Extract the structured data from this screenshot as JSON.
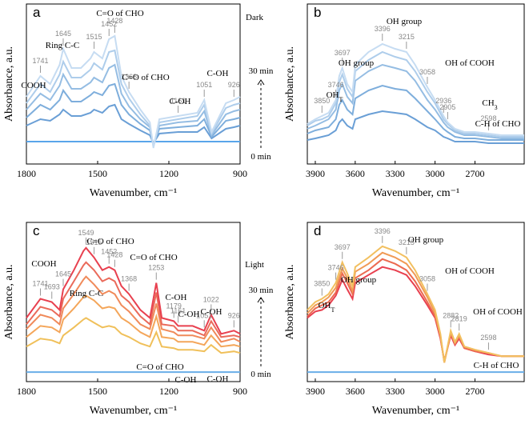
{
  "chart_data": [
    {
      "type": "line",
      "label": "a",
      "xlabel": "Wavenumber, cm⁻¹",
      "ylabel": "Absorbance, a.u.",
      "xlim": [
        1800,
        900
      ],
      "xticks": [
        1800,
        1500,
        1200,
        900
      ],
      "ylim": [
        0,
        1
      ],
      "x": [
        1800,
        1741,
        1700,
        1660,
        1645,
        1610,
        1570,
        1530,
        1515,
        1480,
        1452,
        1428,
        1400,
        1368,
        1320,
        1280,
        1265,
        1240,
        1161,
        1080,
        1051,
        1020,
        960,
        926,
        900
      ],
      "series": [
        {
          "color": "#5aa5ea",
          "values": [
            0.14,
            0.14,
            0.14,
            0.14,
            0.14,
            0.14,
            0.14,
            0.14,
            0.14,
            0.14,
            0.14,
            0.14,
            0.14,
            0.14,
            0.14,
            0.14,
            0.14,
            0.14,
            0.14,
            0.14,
            0.14,
            0.14,
            0.14,
            0.14,
            0.14
          ]
        },
        {
          "color": "#6a9fd6",
          "values": [
            0.24,
            0.28,
            0.27,
            0.31,
            0.34,
            0.3,
            0.3,
            0.32,
            0.34,
            0.32,
            0.36,
            0.37,
            0.28,
            0.25,
            0.21,
            0.18,
            0.13,
            0.19,
            0.2,
            0.2,
            0.23,
            0.16,
            0.22,
            0.23,
            0.24
          ]
        },
        {
          "color": "#7eaedc",
          "values": [
            0.29,
            0.37,
            0.34,
            0.4,
            0.46,
            0.39,
            0.39,
            0.43,
            0.45,
            0.43,
            0.49,
            0.5,
            0.37,
            0.31,
            0.25,
            0.21,
            0.12,
            0.22,
            0.23,
            0.24,
            0.28,
            0.17,
            0.27,
            0.28,
            0.29
          ]
        },
        {
          "color": "#95bde3",
          "values": [
            0.34,
            0.44,
            0.4,
            0.49,
            0.56,
            0.47,
            0.47,
            0.51,
            0.54,
            0.51,
            0.6,
            0.62,
            0.44,
            0.36,
            0.28,
            0.23,
            0.11,
            0.24,
            0.26,
            0.27,
            0.33,
            0.18,
            0.31,
            0.33,
            0.34
          ]
        },
        {
          "color": "#aecdeb",
          "values": [
            0.38,
            0.5,
            0.45,
            0.56,
            0.64,
            0.54,
            0.54,
            0.59,
            0.63,
            0.59,
            0.7,
            0.71,
            0.5,
            0.41,
            0.31,
            0.24,
            0.11,
            0.26,
            0.28,
            0.3,
            0.37,
            0.19,
            0.35,
            0.37,
            0.38
          ]
        },
        {
          "color": "#c6dcf2",
          "values": [
            0.42,
            0.55,
            0.5,
            0.62,
            0.72,
            0.6,
            0.6,
            0.66,
            0.7,
            0.66,
            0.78,
            0.8,
            0.55,
            0.45,
            0.34,
            0.26,
            0.1,
            0.28,
            0.3,
            0.32,
            0.4,
            0.2,
            0.38,
            0.4,
            0.42
          ]
        }
      ],
      "peaks": [
        1741,
        1645,
        1515,
        1452,
        1428,
        1368,
        1161,
        1051,
        926
      ],
      "annotations": [
        "COOH",
        "Ring C-C",
        "C=O of CHO",
        "C=O of CHO",
        "C-OH",
        "C-OH",
        "Dark",
        "30 min",
        "0 min"
      ]
    },
    {
      "type": "line",
      "label": "b",
      "xlabel": "Wavenumber, cm⁻¹",
      "ylabel": "Absorbance, a.u.",
      "xlim": [
        3960,
        2330
      ],
      "xticks": [
        3900,
        3600,
        3300,
        3000,
        2700
      ],
      "ylim": [
        0,
        1
      ],
      "x": [
        3960,
        3900,
        3850,
        3800,
        3746,
        3720,
        3697,
        3660,
        3620,
        3600,
        3500,
        3396,
        3300,
        3215,
        3150,
        3058,
        3000,
        2936,
        2905,
        2850,
        2780,
        2700,
        2598,
        2500,
        2330
      ],
      "series": [
        {
          "color": "#6a9fd6",
          "values": [
            0.15,
            0.16,
            0.17,
            0.18,
            0.21,
            0.26,
            0.28,
            0.24,
            0.22,
            0.28,
            0.31,
            0.33,
            0.32,
            0.31,
            0.28,
            0.23,
            0.21,
            0.17,
            0.16,
            0.14,
            0.14,
            0.14,
            0.13,
            0.13,
            0.13
          ]
        },
        {
          "color": "#7eaedc",
          "values": [
            0.19,
            0.21,
            0.22,
            0.23,
            0.28,
            0.37,
            0.4,
            0.34,
            0.31,
            0.41,
            0.46,
            0.49,
            0.47,
            0.46,
            0.41,
            0.33,
            0.28,
            0.22,
            0.2,
            0.17,
            0.16,
            0.16,
            0.15,
            0.15,
            0.15
          ]
        },
        {
          "color": "#95bde3",
          "values": [
            0.22,
            0.24,
            0.26,
            0.28,
            0.34,
            0.46,
            0.5,
            0.42,
            0.38,
            0.52,
            0.58,
            0.62,
            0.6,
            0.58,
            0.52,
            0.4,
            0.34,
            0.26,
            0.23,
            0.2,
            0.18,
            0.18,
            0.17,
            0.16,
            0.16
          ]
        },
        {
          "color": "#aecdeb",
          "values": [
            0.24,
            0.27,
            0.28,
            0.3,
            0.38,
            0.51,
            0.56,
            0.47,
            0.42,
            0.58,
            0.65,
            0.7,
            0.67,
            0.65,
            0.58,
            0.45,
            0.38,
            0.28,
            0.25,
            0.21,
            0.19,
            0.19,
            0.18,
            0.17,
            0.17
          ]
        },
        {
          "color": "#c6dcf2",
          "values": [
            0.25,
            0.28,
            0.3,
            0.32,
            0.4,
            0.55,
            0.6,
            0.5,
            0.45,
            0.62,
            0.7,
            0.75,
            0.72,
            0.7,
            0.62,
            0.48,
            0.4,
            0.3,
            0.26,
            0.22,
            0.2,
            0.2,
            0.19,
            0.18,
            0.18
          ]
        }
      ],
      "peaks": [
        3850,
        3746,
        3697,
        3396,
        3215,
        3058,
        2936,
        2905,
        2598
      ],
      "annotations": [
        "OH group",
        "OH group",
        "OH of COOH",
        {
          "text": "OH",
          "sub": "T"
        },
        {
          "text": "CH",
          "sub": "3"
        },
        "C-H of CHO"
      ]
    },
    {
      "type": "line",
      "label": "c",
      "xlabel": "Wavenumber, cm⁻¹",
      "ylabel": "Absorbance, a.u.",
      "xlim": [
        1800,
        900
      ],
      "xticks": [
        1800,
        1500,
        1200,
        900
      ],
      "ylim": [
        0,
        1
      ],
      "x": [
        1800,
        1741,
        1693,
        1660,
        1645,
        1600,
        1560,
        1549,
        1515,
        1480,
        1452,
        1428,
        1400,
        1368,
        1320,
        1280,
        1253,
        1230,
        1179,
        1161,
        1100,
        1051,
        1022,
        980,
        926,
        900
      ],
      "series": [
        {
          "color": "#6aaee8",
          "values": [
            0.06,
            0.06,
            0.06,
            0.06,
            0.06,
            0.06,
            0.06,
            0.06,
            0.06,
            0.06,
            0.06,
            0.06,
            0.06,
            0.06,
            0.06,
            0.06,
            0.06,
            0.06,
            0.06,
            0.06,
            0.06,
            0.06,
            0.06,
            0.06,
            0.06,
            0.06
          ]
        },
        {
          "color": "#f0c05a",
          "values": [
            0.22,
            0.27,
            0.26,
            0.24,
            0.29,
            0.34,
            0.39,
            0.4,
            0.37,
            0.34,
            0.35,
            0.34,
            0.3,
            0.28,
            0.24,
            0.22,
            0.31,
            0.22,
            0.21,
            0.2,
            0.2,
            0.19,
            0.23,
            0.18,
            0.19,
            0.18
          ]
        },
        {
          "color": "#f4a65a",
          "values": [
            0.28,
            0.35,
            0.34,
            0.31,
            0.39,
            0.46,
            0.53,
            0.54,
            0.51,
            0.46,
            0.47,
            0.46,
            0.4,
            0.37,
            0.31,
            0.28,
            0.41,
            0.28,
            0.27,
            0.25,
            0.25,
            0.23,
            0.29,
            0.22,
            0.23,
            0.22
          ]
        },
        {
          "color": "#f08a5a",
          "values": [
            0.33,
            0.42,
            0.4,
            0.36,
            0.46,
            0.55,
            0.64,
            0.66,
            0.61,
            0.55,
            0.57,
            0.55,
            0.48,
            0.44,
            0.36,
            0.33,
            0.49,
            0.33,
            0.31,
            0.29,
            0.29,
            0.27,
            0.34,
            0.25,
            0.27,
            0.25
          ]
        },
        {
          "color": "#ea6a5a",
          "values": [
            0.36,
            0.47,
            0.45,
            0.41,
            0.52,
            0.63,
            0.73,
            0.75,
            0.7,
            0.63,
            0.65,
            0.63,
            0.54,
            0.5,
            0.41,
            0.36,
            0.56,
            0.36,
            0.35,
            0.32,
            0.32,
            0.29,
            0.38,
            0.28,
            0.29,
            0.28
          ]
        },
        {
          "color": "#e8404f",
          "values": [
            0.4,
            0.52,
            0.5,
            0.45,
            0.58,
            0.7,
            0.82,
            0.84,
            0.78,
            0.7,
            0.72,
            0.7,
            0.6,
            0.55,
            0.45,
            0.4,
            0.62,
            0.4,
            0.38,
            0.35,
            0.35,
            0.32,
            0.42,
            0.3,
            0.32,
            0.3
          ]
        }
      ],
      "peaks": [
        1741,
        1693,
        1645,
        1549,
        1515,
        1452,
        1428,
        1368,
        1253,
        1179,
        1161,
        1051,
        1022,
        926
      ],
      "annotations": [
        "COOH",
        "Ring C-C",
        "C=O of CHO",
        "C=O of CHO",
        "C-OH",
        "C-OH",
        "C-OH",
        "C=O of CHO",
        "C-OH",
        "C-OH",
        "Light",
        "30 min",
        "0 min"
      ]
    },
    {
      "type": "line",
      "label": "d",
      "xlabel": "Wavenumber, cm⁻¹",
      "ylabel": "Absorbance, a.u.",
      "xlim": [
        3960,
        2330
      ],
      "xticks": [
        3900,
        3600,
        3300,
        3000,
        2700
      ],
      "ylim": [
        0,
        1
      ],
      "x": [
        3960,
        3900,
        3850,
        3800,
        3746,
        3697,
        3660,
        3620,
        3600,
        3500,
        3396,
        3300,
        3215,
        3150,
        3058,
        3000,
        2960,
        2930,
        2882,
        2850,
        2819,
        2780,
        2700,
        2598,
        2500,
        2330
      ],
      "series": [
        {
          "color": "#6aaee8",
          "values": [
            0.06,
            0.06,
            0.06,
            0.06,
            0.06,
            0.06,
            0.06,
            0.06,
            0.06,
            0.06,
            0.06,
            0.06,
            0.06,
            0.06,
            0.06,
            0.06,
            0.06,
            0.06,
            0.06,
            0.06,
            0.06,
            0.06,
            0.06,
            0.06,
            0.06,
            0.06
          ]
        },
        {
          "color": "#e8404f",
          "values": [
            0.4,
            0.44,
            0.45,
            0.48,
            0.54,
            0.64,
            0.58,
            0.52,
            0.62,
            0.67,
            0.72,
            0.7,
            0.67,
            0.6,
            0.48,
            0.4,
            0.27,
            0.13,
            0.29,
            0.23,
            0.27,
            0.21,
            0.19,
            0.17,
            0.16,
            0.16
          ]
        },
        {
          "color": "#ec6a50",
          "values": [
            0.41,
            0.46,
            0.48,
            0.5,
            0.56,
            0.68,
            0.62,
            0.55,
            0.65,
            0.7,
            0.77,
            0.74,
            0.7,
            0.63,
            0.5,
            0.41,
            0.28,
            0.12,
            0.3,
            0.24,
            0.28,
            0.21,
            0.19,
            0.18,
            0.16,
            0.16
          ]
        },
        {
          "color": "#f09a55",
          "values": [
            0.43,
            0.48,
            0.5,
            0.53,
            0.59,
            0.71,
            0.65,
            0.57,
            0.69,
            0.74,
            0.81,
            0.78,
            0.74,
            0.67,
            0.53,
            0.43,
            0.29,
            0.12,
            0.31,
            0.24,
            0.29,
            0.22,
            0.2,
            0.18,
            0.16,
            0.16
          ]
        },
        {
          "color": "#f2c060",
          "values": [
            0.45,
            0.5,
            0.52,
            0.55,
            0.62,
            0.75,
            0.68,
            0.6,
            0.72,
            0.78,
            0.85,
            0.82,
            0.78,
            0.7,
            0.55,
            0.45,
            0.3,
            0.12,
            0.32,
            0.25,
            0.3,
            0.22,
            0.2,
            0.18,
            0.16,
            0.16
          ]
        }
      ],
      "peaks": [
        3850,
        3746,
        3697,
        3396,
        3215,
        3058,
        2882,
        2819,
        2598
      ],
      "annotations": [
        "OH group",
        "OH group",
        "OH of COOH",
        "OH of COOH",
        {
          "text": "OH",
          "sub": "T"
        },
        "C-H of CHO"
      ]
    }
  ]
}
